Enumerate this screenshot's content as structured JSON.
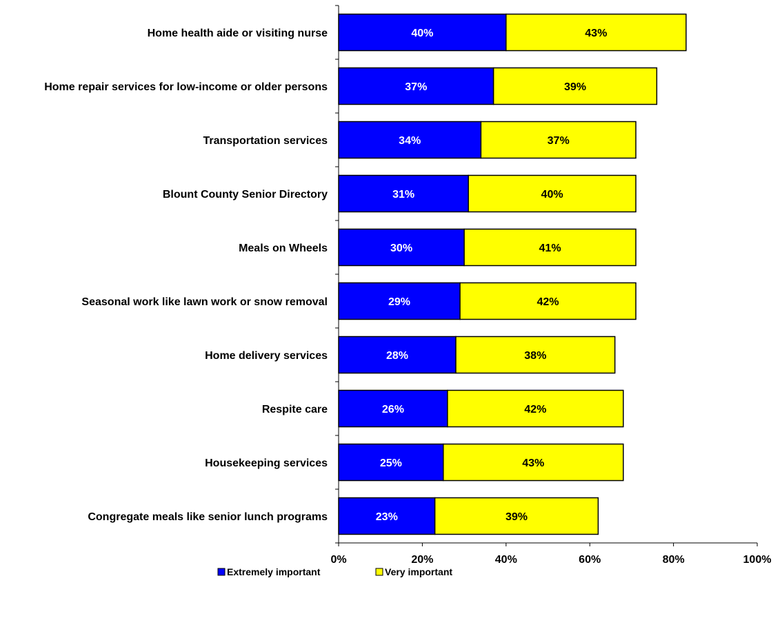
{
  "chart_data": {
    "type": "bar",
    "orientation": "horizontal",
    "stacked": true,
    "categories": [
      "Home health aide or visiting nurse",
      "Home repair services for low-income or older persons",
      "Transportation services",
      "Blount County Senior Directory",
      "Meals on Wheels",
      "Seasonal work like lawn work or snow removal",
      "Home delivery services",
      "Respite care",
      "Housekeeping services",
      "Congregate meals like senior lunch programs"
    ],
    "series": [
      {
        "name": "Extremely important",
        "color": "#0000FF",
        "label_color": "#FFFFFF",
        "values": [
          40,
          37,
          34,
          31,
          30,
          29,
          28,
          26,
          25,
          23
        ],
        "labels": [
          "40%",
          "37%",
          "34%",
          "31%",
          "30%",
          "29%",
          "28%",
          "26%",
          "25%",
          "23%"
        ]
      },
      {
        "name": "Very important",
        "color": "#FFFF00",
        "label_color": "#000000",
        "values": [
          43,
          39,
          37,
          40,
          41,
          42,
          38,
          42,
          43,
          39
        ],
        "labels": [
          "43%",
          "39%",
          "37%",
          "40%",
          "41%",
          "42%",
          "38%",
          "42%",
          "43%",
          "39%"
        ]
      }
    ],
    "xlim": [
      0,
      100
    ],
    "xticks": [
      0,
      20,
      40,
      60,
      80,
      100
    ],
    "xtick_labels": [
      "0%",
      "20%",
      "40%",
      "60%",
      "80%",
      "100%"
    ],
    "grid": false,
    "legend_position": "bottom"
  }
}
